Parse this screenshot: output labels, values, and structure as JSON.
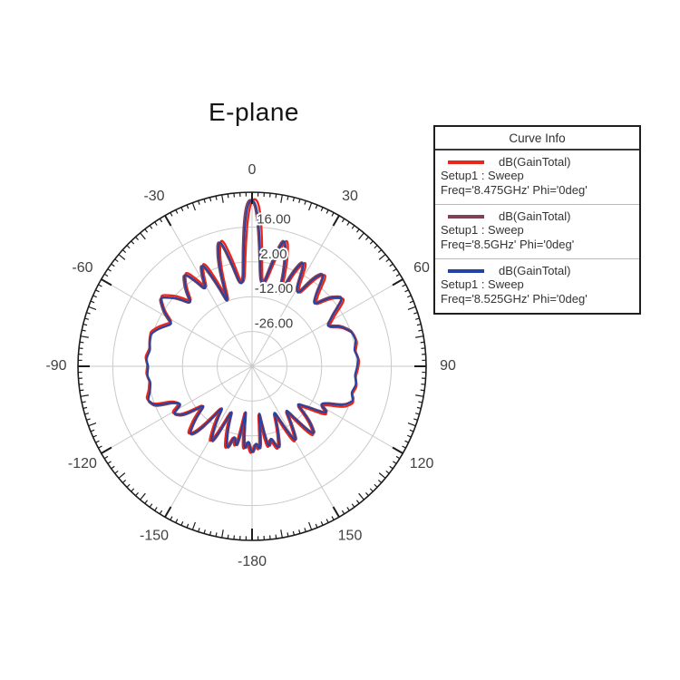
{
  "title": "E-plane",
  "legend": {
    "header": "Curve Info",
    "entries": [
      {
        "label": "dB(GainTotal)",
        "line2": "Setup1 : Sweep",
        "line3": "Freq='8.475GHz' Phi='0deg'",
        "color": "#e8261a"
      },
      {
        "label": "dB(GainTotal)",
        "line2": "Setup1 : Sweep",
        "line3": "Freq='8.5GHz' Phi='0deg'",
        "color": "#7e4158"
      },
      {
        "label": "dB(GainTotal)",
        "line2": "Setup1 : Sweep",
        "line3": "Freq='8.525GHz' Phi='0deg'",
        "color": "#2342a6"
      }
    ]
  },
  "chart_data": {
    "type": "line",
    "subtype": "polar-radiation-pattern",
    "title": "E-plane",
    "value_unit": "dB",
    "angle_labels": [
      "0",
      "30",
      "60",
      "90",
      "120",
      "150",
      "-180",
      "-150",
      "-120",
      "-90",
      "-60",
      "-30"
    ],
    "angle_ticks_deg": {
      "minor": 2,
      "medium": 10,
      "major": 30
    },
    "rlim": [
      -40,
      30
    ],
    "radial_gridlines": [
      16,
      2,
      -12,
      -26
    ],
    "radial_grid_labels": [
      "16.00",
      "2.00",
      "-12.00",
      "-26.00"
    ],
    "grid_color": "#c9c9c9",
    "axis_color": "#1c1c1c",
    "tick_label_color": "#414141",
    "legend_position": "right",
    "series": [
      {
        "name": "dB(GainTotal) Setup1 : Sweep Freq='8.475GHz' Phi='0deg'",
        "color": "#e8261a",
        "rot_deg": 0.9,
        "db_offset": 0.45,
        "width": 2.4
      },
      {
        "name": "dB(GainTotal) Setup1 : Sweep Freq='8.5GHz' Phi='0deg'",
        "color": "#7e4158",
        "rot_deg": -0.6,
        "db_offset": 0.2,
        "width": 2.1
      },
      {
        "name": "dB(GainTotal) Setup1 : Sweep Freq='8.525GHz' Phi='0deg'",
        "color": "#2342a6",
        "rot_deg": 0.0,
        "db_offset": 0.0,
        "width": 1.8
      }
    ],
    "pattern_db_vs_theta_deg": [
      [
        -180,
        -4.5
      ],
      [
        -177,
        -11
      ],
      [
        -174.5,
        -5
      ],
      [
        -172,
        -26.5
      ],
      [
        -169,
        -6
      ],
      [
        -166,
        -12
      ],
      [
        -163,
        -4.8
      ],
      [
        -159,
        -13
      ],
      [
        -155.5,
        -22
      ],
      [
        -152,
        -4.5
      ],
      [
        -148,
        -12
      ],
      [
        -144,
        -21
      ],
      [
        -140,
        -6
      ],
      [
        -137.5,
        -2.6
      ],
      [
        -133,
        -9
      ],
      [
        -129,
        -16
      ],
      [
        -125,
        -6
      ],
      [
        -121,
        -3
      ],
      [
        -118,
        -8
      ],
      [
        -114,
        -5
      ],
      [
        -112,
        2
      ],
      [
        -108,
        4
      ],
      [
        -104,
        2.2
      ],
      [
        -99,
        1.2
      ],
      [
        -95,
        2.2
      ],
      [
        -90,
        1.6
      ],
      [
        -86,
        2.6
      ],
      [
        -81,
        1.4
      ],
      [
        -76,
        2.2
      ],
      [
        -72,
        2.6
      ],
      [
        -68,
        0.4
      ],
      [
        -62,
        -3.8
      ],
      [
        -58,
        1.5
      ],
      [
        -53,
        6.1
      ],
      [
        -48,
        1
      ],
      [
        -44,
        -5.2
      ],
      [
        -40,
        1.5
      ],
      [
        -36,
        6.3
      ],
      [
        -33,
        0
      ],
      [
        -31,
        -5
      ],
      [
        -28.5,
        1.5
      ],
      [
        -26,
        6.5
      ],
      [
        -23.5,
        -3
      ],
      [
        -20.5,
        -15
      ],
      [
        -17.5,
        4
      ],
      [
        -14.5,
        13.2
      ],
      [
        -11.5,
        3
      ],
      [
        -9,
        -5.5
      ],
      [
        -7,
        -7
      ],
      [
        -5,
        -4
      ],
      [
        -3.5,
        9
      ],
      [
        -1.5,
        25.5
      ],
      [
        0,
        27.5
      ],
      [
        1.5,
        25.5
      ],
      [
        3.5,
        9
      ],
      [
        5,
        -4
      ],
      [
        7,
        -7
      ],
      [
        9,
        -5.5
      ],
      [
        11.5,
        3
      ],
      [
        14.5,
        13.6
      ],
      [
        17.5,
        4
      ],
      [
        21,
        -11.5
      ],
      [
        24,
        2
      ],
      [
        26.5,
        7.8
      ],
      [
        29.5,
        -3.5
      ],
      [
        32.5,
        -6
      ],
      [
        35.5,
        4
      ],
      [
        38,
        7.4
      ],
      [
        41.5,
        -1
      ],
      [
        45,
        -5.3
      ],
      [
        49,
        2
      ],
      [
        53,
        5.8
      ],
      [
        57.5,
        -1.5
      ],
      [
        62,
        -6.1
      ],
      [
        66,
        -1
      ],
      [
        71,
        2.3
      ],
      [
        76,
        2.9
      ],
      [
        81,
        1.5
      ],
      [
        86,
        2.7
      ],
      [
        90,
        2.2
      ],
      [
        95,
        1.4
      ],
      [
        100,
        2.4
      ],
      [
        105,
        1.2
      ],
      [
        109,
        3
      ],
      [
        113,
        0
      ],
      [
        116,
        -6
      ],
      [
        119,
        -9
      ],
      [
        122,
        -4
      ],
      [
        126,
        -12
      ],
      [
        130,
        -17
      ],
      [
        134,
        -8
      ],
      [
        138,
        -2.3
      ],
      [
        142,
        -19
      ],
      [
        146,
        -12
      ],
      [
        150,
        -4.3
      ],
      [
        154,
        -21
      ],
      [
        158,
        -13
      ],
      [
        162,
        -4.7
      ],
      [
        165.5,
        -11
      ],
      [
        168.5,
        -5.8
      ],
      [
        171.5,
        -25
      ],
      [
        174.5,
        -5.2
      ],
      [
        177,
        -10
      ],
      [
        180,
        -4.5
      ]
    ]
  }
}
